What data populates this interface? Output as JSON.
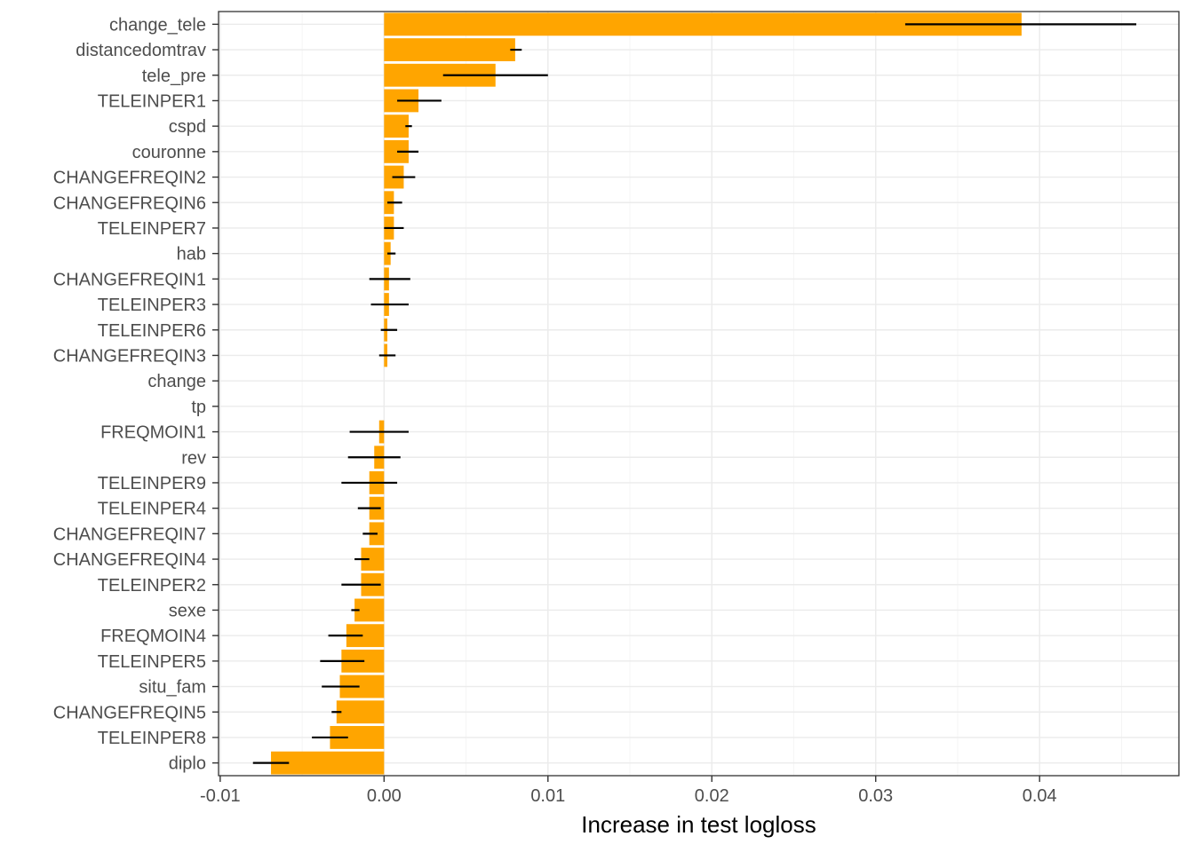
{
  "chart_data": {
    "type": "bar",
    "orientation": "horizontal",
    "xlabel": "Increase in test logloss",
    "ylabel": "",
    "xlim": [
      -0.0101,
      0.0485
    ],
    "x_ticks": [
      -0.01,
      0.0,
      0.01,
      0.02,
      0.03,
      0.04
    ],
    "x_tick_labels": [
      "-0.01",
      "0.00",
      "0.01",
      "0.02",
      "0.03",
      "0.04"
    ],
    "grid": true,
    "bar_color": "#FFA500",
    "error_color": "#000000",
    "categories": [
      "change_tele",
      "distancedomtrav",
      "tele_pre",
      "TELEINPER1",
      "cspd",
      "couronne",
      "CHANGEFREQIN2",
      "CHANGEFREQIN6",
      "TELEINPER7",
      "hab",
      "CHANGEFREQIN1",
      "TELEINPER3",
      "TELEINPER6",
      "CHANGEFREQIN3",
      "change",
      "tp",
      "FREQMOIN1",
      "rev",
      "TELEINPER9",
      "TELEINPER4",
      "CHANGEFREQIN7",
      "CHANGEFREQIN4",
      "TELEINPER2",
      "sexe",
      "FREQMOIN4",
      "TELEINPER5",
      "situ_fam",
      "CHANGEFREQIN5",
      "TELEINPER8",
      "diplo"
    ],
    "values": [
      0.0389,
      0.008,
      0.0068,
      0.0021,
      0.0015,
      0.0015,
      0.0012,
      0.0006,
      0.0006,
      0.0004,
      0.0003,
      0.0003,
      0.0002,
      0.0002,
      0.0,
      0.0,
      -0.0003,
      -0.0006,
      -0.0009,
      -0.0009,
      -0.0009,
      -0.0014,
      -0.0014,
      -0.0018,
      -0.0023,
      -0.0026,
      -0.0027,
      -0.0029,
      -0.0033,
      -0.0069
    ],
    "error_low": [
      0.0318,
      0.0077,
      0.0036,
      0.0008,
      0.0013,
      0.0008,
      0.0005,
      0.0002,
      0.0,
      0.0002,
      -0.0009,
      -0.0008,
      -0.0002,
      -0.0003,
      null,
      null,
      -0.0021,
      -0.0022,
      -0.0026,
      -0.0016,
      -0.0013,
      -0.0018,
      -0.0026,
      -0.002,
      -0.0034,
      -0.0039,
      -0.0038,
      -0.0032,
      -0.0044,
      -0.008
    ],
    "error_high": [
      0.0459,
      0.0084,
      0.01,
      0.0035,
      0.0017,
      0.0021,
      0.0019,
      0.0011,
      0.0012,
      0.0007,
      0.0016,
      0.0015,
      0.0008,
      0.0007,
      null,
      null,
      0.0015,
      0.001,
      0.0008,
      -0.0002,
      -0.0004,
      -0.0009,
      -0.0002,
      -0.0015,
      -0.0013,
      -0.0012,
      -0.0015,
      -0.0026,
      -0.0022,
      -0.0058
    ]
  }
}
